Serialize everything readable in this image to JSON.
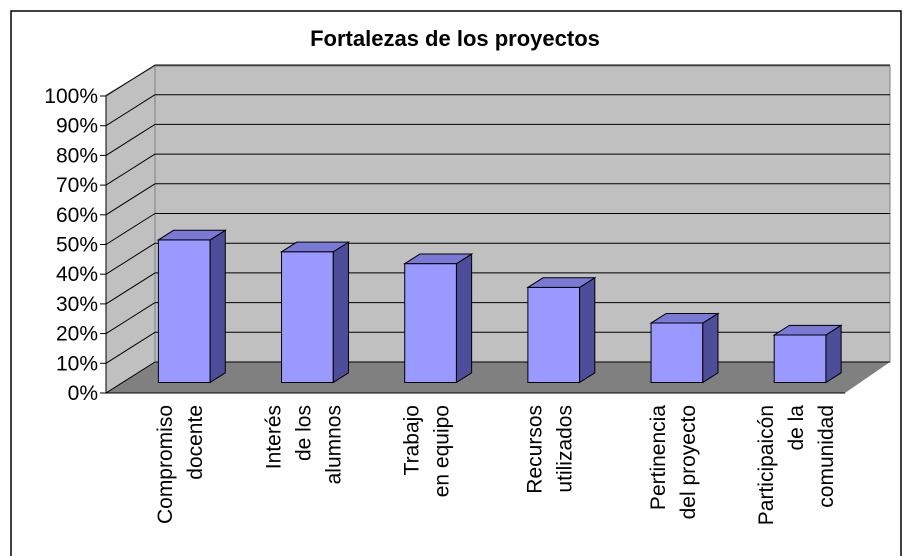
{
  "chart_data": {
    "type": "bar3d",
    "title": "Fortalezas de los proyectos",
    "categories": [
      "Compromiso\ndocente",
      "Interés\nde los\nalumnos",
      "Trabajo\nen equipo",
      "Recursos\nutilizados",
      "Pertinencia\ndel proyecto",
      "Participaicón\nde la\ncomunidad"
    ],
    "values": [
      48,
      44,
      40,
      32,
      20,
      16
    ],
    "color": "#9999ff",
    "ylim": [
      0,
      100
    ],
    "yticks": [
      {
        "value": 0,
        "label": "0%"
      },
      {
        "value": 10,
        "label": "10%"
      },
      {
        "value": 20,
        "label": "20%"
      },
      {
        "value": 30,
        "label": "30%"
      },
      {
        "value": 40,
        "label": "40%"
      },
      {
        "value": 50,
        "label": "50%"
      },
      {
        "value": 60,
        "label": "60%"
      },
      {
        "value": 70,
        "label": "70%"
      },
      {
        "value": 80,
        "label": "80%"
      },
      {
        "value": 90,
        "label": "90%"
      },
      {
        "value": 100,
        "label": "100%"
      }
    ],
    "grid": true
  }
}
